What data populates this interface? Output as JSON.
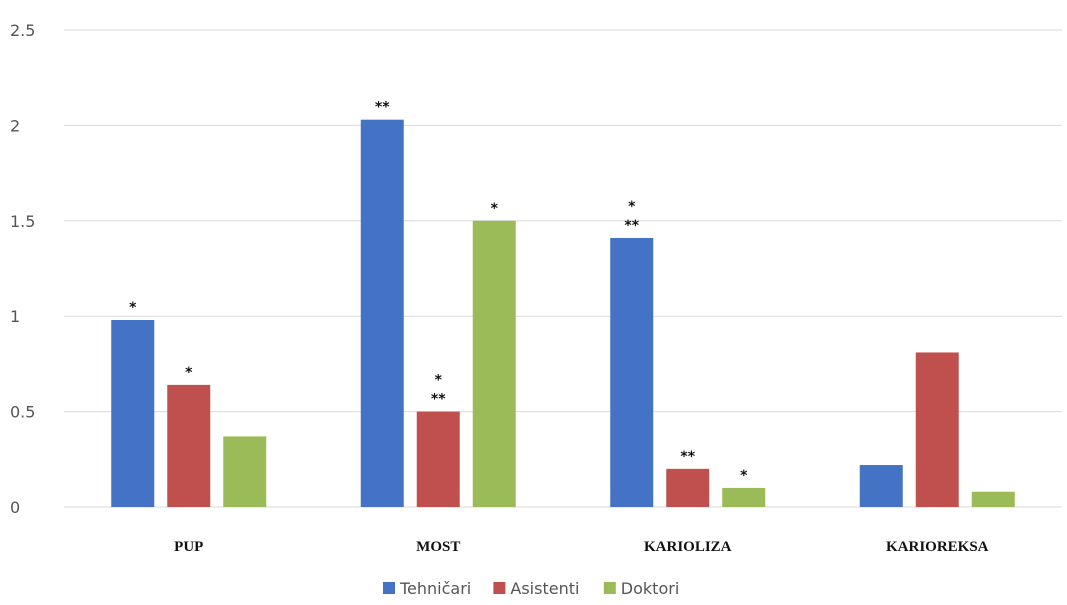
{
  "chart_data": {
    "type": "bar",
    "categories": [
      "PUP",
      "MOST",
      "KARIOLIZA",
      "KARIOREKSA"
    ],
    "series": [
      {
        "name": "Tehničari",
        "color": "#4472C4",
        "values": [
          0.98,
          2.03,
          1.41,
          0.22
        ],
        "annotations": [
          [
            "*"
          ],
          [
            "**"
          ],
          [
            "*",
            "**"
          ],
          []
        ]
      },
      {
        "name": "Asistenti",
        "color": "#C0504D",
        "values": [
          0.64,
          0.5,
          0.2,
          0.81
        ],
        "annotations": [
          [
            "*"
          ],
          [
            "*",
            "**"
          ],
          [
            "**"
          ],
          []
        ]
      },
      {
        "name": "Doktori",
        "color": "#9BBB59",
        "values": [
          0.37,
          1.5,
          0.1,
          0.08
        ],
        "annotations": [
          [],
          [
            "*"
          ],
          [
            "*"
          ],
          []
        ]
      }
    ],
    "yticks": [
      "0",
      "0.5",
      "1",
      "1.5",
      "2",
      "2.5"
    ],
    "ylim": [
      0,
      2.5
    ],
    "grid": true,
    "legend_position": "bottom"
  }
}
